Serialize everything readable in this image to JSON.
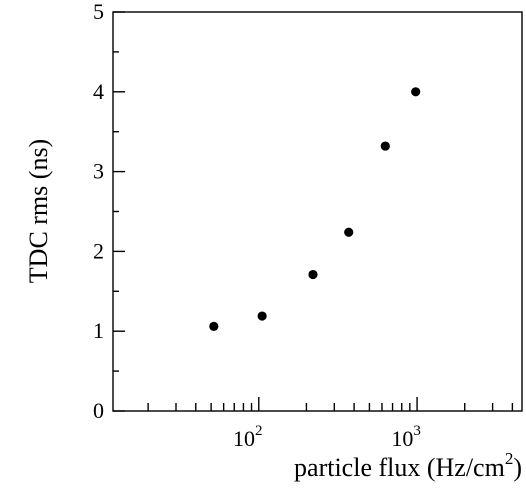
{
  "chart_data": {
    "type": "scatter",
    "xlabel": "particle flux (Hz/cm",
    "xlabel_superscript": "2",
    "xlabel_close": ")",
    "ylabel": "TDC rms (ns)",
    "xscale": "log",
    "xlim": [
      12,
      4600
    ],
    "ylim": [
      0,
      5
    ],
    "grid": false,
    "y_ticks": [
      0,
      1,
      2,
      3,
      4,
      5
    ],
    "y_tick_labels": [
      "0",
      "1",
      "2",
      "3",
      "4",
      "5"
    ],
    "x_major_ticks": [
      {
        "value": 100,
        "base": "10",
        "exp": "2"
      },
      {
        "value": 1000,
        "base": "10",
        "exp": "3"
      }
    ],
    "points": [
      {
        "x": 52,
        "y": 1.06
      },
      {
        "x": 105,
        "y": 1.19
      },
      {
        "x": 220,
        "y": 1.71
      },
      {
        "x": 370,
        "y": 2.24
      },
      {
        "x": 630,
        "y": 3.32
      },
      {
        "x": 980,
        "y": 4.0
      }
    ],
    "marker_color": "#000000"
  }
}
